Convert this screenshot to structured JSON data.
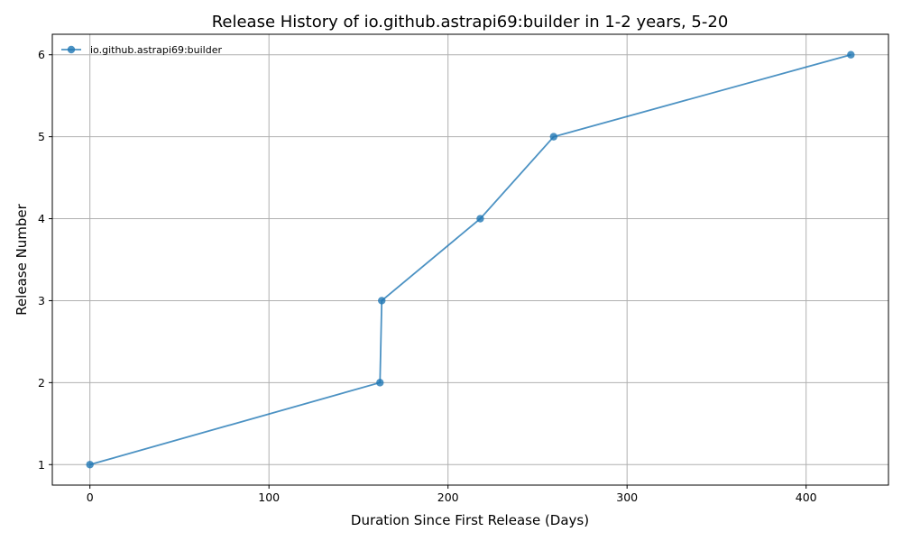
{
  "chart_data": {
    "type": "line",
    "title": "Release History of io.github.astrapi69:builder in 1-2 years, 5-20",
    "xlabel": "Duration Since First Release (Days)",
    "ylabel": "Release Number",
    "xlim": [
      -21,
      446
    ],
    "ylim": [
      0.75,
      6.25
    ],
    "xticks": [
      0,
      100,
      200,
      300,
      400
    ],
    "yticks": [
      1,
      2,
      3,
      4,
      5,
      6
    ],
    "grid": true,
    "legend_position": "top-left",
    "series": [
      {
        "name": "io.github.astrapi69:builder",
        "color": "#1f77b4",
        "x": [
          0,
          162,
          163,
          218,
          259,
          425
        ],
        "y": [
          1,
          2,
          3,
          4,
          5,
          6
        ]
      }
    ]
  }
}
